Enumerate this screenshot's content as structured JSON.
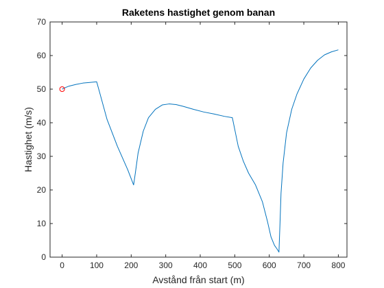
{
  "chart_data": {
    "type": "line",
    "title": "Raketens hastighet genom banan",
    "xlabel": "Avstånd från start (m)",
    "ylabel": "Hastighet (m/s)",
    "xlim": [
      -35,
      825
    ],
    "ylim": [
      0,
      70
    ],
    "xticks": [
      0,
      100,
      200,
      300,
      400,
      500,
      600,
      700,
      800
    ],
    "yticks": [
      0,
      10,
      20,
      30,
      40,
      50,
      60,
      70
    ],
    "xtick_labels": [
      "0",
      "100",
      "200",
      "300",
      "400",
      "500",
      "600",
      "700",
      "800"
    ],
    "ytick_labels": [
      "0",
      "10",
      "20",
      "30",
      "40",
      "50",
      "60",
      "70"
    ],
    "grid": false,
    "line_color": "#0072BD",
    "marker_color": "#FF0000",
    "series": [
      {
        "x": [
          0,
          10,
          20,
          40,
          60,
          80,
          100,
          110,
          130,
          160,
          190,
          207,
          212,
          220,
          235,
          250,
          270,
          290,
          310,
          330,
          350,
          380,
          410,
          440,
          470,
          493,
          500,
          510,
          525,
          540,
          560,
          580,
          595,
          605,
          615,
          622,
          628,
          631,
          634,
          640,
          650,
          665,
          680,
          700,
          720,
          740,
          760,
          780,
          800
        ],
        "y": [
          50,
          50.5,
          50.9,
          51.4,
          51.8,
          52.0,
          52.2,
          48.5,
          41,
          33,
          26,
          21.5,
          25,
          31,
          37.5,
          41.5,
          44,
          45.3,
          45.6,
          45.4,
          44.9,
          44.0,
          43.2,
          42.6,
          41.9,
          41.5,
          38,
          33,
          28.5,
          25,
          21.5,
          16.5,
          10.5,
          6,
          3.5,
          2.5,
          1.5,
          10,
          19,
          28,
          37,
          44,
          48.5,
          53,
          56.3,
          58.6,
          60.2,
          61.1,
          61.7
        ]
      }
    ],
    "markers": [
      {
        "x": 0,
        "y": 50,
        "shape": "circle"
      }
    ]
  }
}
